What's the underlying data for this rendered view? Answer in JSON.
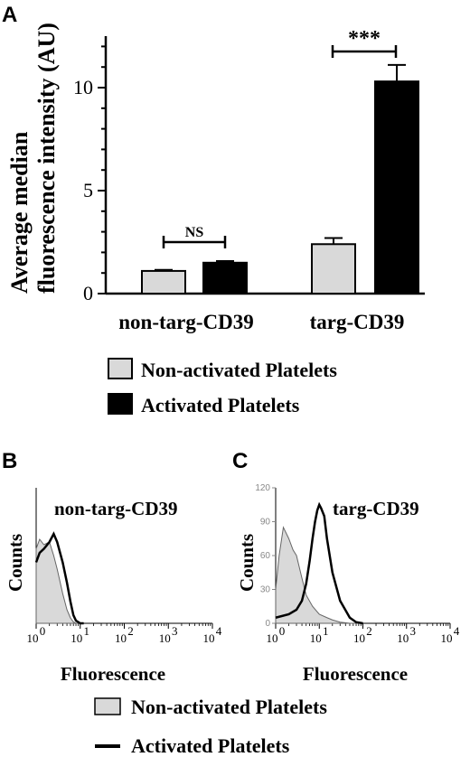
{
  "figure": {
    "panel_a_letter": "A",
    "panel_b_letter": "B",
    "panel_c_letter": "C"
  },
  "chart_data": [
    {
      "type": "bar",
      "panel": "A",
      "ylabel_line1": "Average median",
      "ylabel_line2": "fluorescence intensity (AU)",
      "ylim": [
        0,
        12.5
      ],
      "yticks": [
        "0",
        "5",
        "10"
      ],
      "categories": [
        "non-targ-CD39",
        "targ-CD39"
      ],
      "series": [
        {
          "name": "Non-activated Platelets",
          "color": "#d9d9d9",
          "values": [
            1.1,
            2.4
          ],
          "errors": [
            0.05,
            0.3
          ]
        },
        {
          "name": "Activated Platelets",
          "color": "#000000",
          "values": [
            1.5,
            10.3
          ],
          "errors": [
            0.08,
            0.8
          ]
        }
      ],
      "significance": [
        "NS",
        "***"
      ],
      "legend": [
        "Non-activated Platelets",
        "Activated Platelets"
      ],
      "legend_position": "bottom"
    },
    {
      "type": "area",
      "panel": "B",
      "title": "non-targ-CD39",
      "ylabel": "Counts",
      "xlabel": "Fluorescence",
      "xscale": "log",
      "xticks": [
        "10",
        "10",
        "10",
        "10",
        "10"
      ],
      "xtick_exponents": [
        "0",
        "1",
        "2",
        "3",
        "4"
      ],
      "xlim": [
        1,
        10000
      ],
      "ylim": [
        0,
        100
      ],
      "series": [
        {
          "name": "Non-activated Platelets",
          "x": [
            1,
            1.2,
            1.5,
            2,
            2.5,
            3,
            4,
            5,
            6,
            7,
            8,
            10
          ],
          "y": [
            55,
            62,
            58,
            60,
            50,
            40,
            22,
            10,
            4,
            1,
            0,
            0
          ]
        },
        {
          "name": "Activated Platelets",
          "x": [
            1,
            1.2,
            1.5,
            2,
            2.5,
            3,
            4,
            5,
            6,
            7,
            8,
            10,
            12
          ],
          "y": [
            45,
            52,
            55,
            60,
            66,
            60,
            45,
            30,
            16,
            6,
            2,
            0,
            0
          ]
        }
      ]
    },
    {
      "type": "area",
      "panel": "C",
      "title": "targ-CD39",
      "ylabel": "Counts",
      "xlabel": "Fluorescence",
      "xscale": "log",
      "xticks": [
        "10",
        "10",
        "10",
        "10",
        "10"
      ],
      "xtick_exponents": [
        "0",
        "1",
        "2",
        "3",
        "4"
      ],
      "yticks": [
        "0",
        "30",
        "60",
        "90",
        "120"
      ],
      "xlim": [
        1,
        10000
      ],
      "ylim": [
        0,
        120
      ],
      "series": [
        {
          "name": "Non-activated Platelets",
          "x": [
            1,
            1.2,
            1.5,
            2,
            2.5,
            3,
            4,
            5,
            7,
            10,
            15,
            20,
            30,
            50,
            100
          ],
          "y": [
            30,
            60,
            85,
            75,
            65,
            60,
            40,
            25,
            15,
            8,
            5,
            3,
            1,
            0,
            0
          ]
        },
        {
          "name": "Activated Platelets",
          "x": [
            1,
            2,
            3,
            4,
            5,
            6,
            7,
            8,
            9,
            10,
            11,
            13,
            15,
            20,
            30,
            50,
            70,
            100
          ],
          "y": [
            5,
            8,
            12,
            20,
            35,
            55,
            75,
            90,
            100,
            105,
            102,
            95,
            75,
            45,
            20,
            5,
            1,
            0
          ]
        }
      ]
    }
  ],
  "bottom_legend": [
    "Non-activated Platelets",
    "Activated Platelets"
  ]
}
